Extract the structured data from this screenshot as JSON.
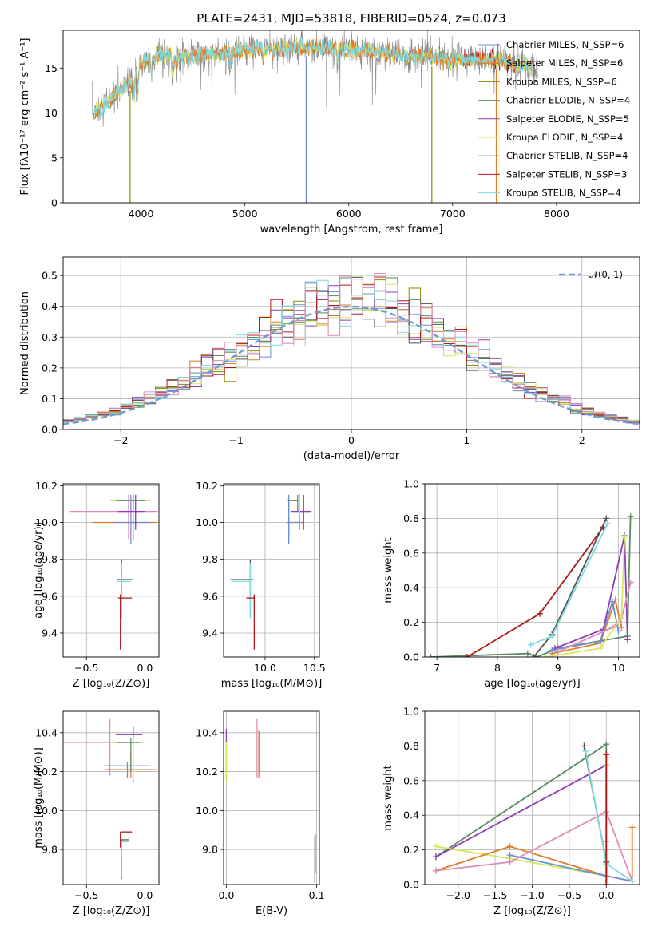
{
  "figure_title": "PLATE=2431, MJD=53818, FIBERID=0524, z=0.073",
  "colors": {
    "chabrier_miles": "#6b8fd6",
    "salpeter_miles": "#e07b2a",
    "kroupa_miles": "#8a8a00",
    "chabrier_elodie": "#5a8a60",
    "salpeter_elodie": "#8e3bb5",
    "kroupa_elodie": "#d4e85a",
    "chabrier_stelib": "#555555",
    "salpeter_stelib": "#b01818",
    "kroupa_stelib": "#7fd9df",
    "data_spectrum": "#888888",
    "normal_curve": "#6f9ad6",
    "pink": "#e08ab8"
  },
  "chart_data": [
    {
      "id": "spectrum",
      "type": "line",
      "title": "PLATE=2431, MJD=53818, FIBERID=0524, z=0.073",
      "xlabel": "wavelength [Angstrom, rest frame]",
      "ylabel": "Flux [fλ10⁻¹⁷ erg cm⁻² s⁻¹ A⁻¹]",
      "xlim": [
        3250,
        8800
      ],
      "ylim": [
        0,
        19.2
      ],
      "xticks": [
        4000,
        5000,
        6000,
        7000,
        8000
      ],
      "yticks": [
        0,
        5,
        10,
        15
      ],
      "grid": false,
      "legend_position": "top-right",
      "legend": [
        "Chabrier MILES, N_SSP=6",
        "Salpeter MILES, N_SSP=6",
        "Kroupa MILES, N_SSP=6",
        "Chabrier ELODIE, N_SSP=4",
        "Salpeter ELODIE, N_SSP=5",
        "Kroupa ELODIE, N_SSP=4",
        "Chabrier STELIB, N_SSP=4",
        "Salpeter STELIB, N_SSP=3",
        "Kroupa STELIB, N_SSP=4"
      ],
      "continuum": {
        "x": [
          3550,
          3700,
          3900,
          4000,
          4200,
          4500,
          4800,
          5000,
          5500,
          6000,
          6500,
          7000,
          7500,
          7800
        ],
        "y": [
          10.0,
          11.5,
          13.5,
          15.5,
          16.4,
          16.3,
          16.7,
          17.0,
          17.4,
          17.0,
          16.5,
          16.0,
          15.8,
          14.8
        ]
      },
      "data_x_range": [
        3530,
        7820
      ],
      "model_x_range": [
        3550,
        7760
      ],
      "red_tail_x_range": [
        7000,
        7600
      ]
    },
    {
      "id": "residual-histogram",
      "type": "bar",
      "xlabel": "(data-model)/error",
      "ylabel": "Normed distribution",
      "xlim": [
        -2.5,
        2.5
      ],
      "ylim": [
        0,
        0.56
      ],
      "xticks": [
        -2,
        -1,
        0,
        1,
        2
      ],
      "yticks": [
        0.0,
        0.1,
        0.2,
        0.3,
        0.4,
        0.5
      ],
      "grid": true,
      "legend_position": "top-right",
      "legend": [
        "𝒩(0, 1)"
      ],
      "bin_width": 0.1,
      "reference": "normal(0,1)"
    },
    {
      "id": "age-vs-metallicity",
      "type": "scatter",
      "xlabel": "Z [log₁₀(Z/Z⊙)]",
      "ylabel": "age  [log₁₀(age/yr)]",
      "xlim": [
        -0.7,
        0.12
      ],
      "ylim": [
        9.27,
        10.21
      ],
      "xticks": [
        -0.5,
        0.0
      ],
      "yticks": [
        9.4,
        9.6,
        9.8,
        10.0,
        10.2
      ],
      "grid": true,
      "points": [
        {
          "x": -0.14,
          "y": 10.06,
          "xerr": [
            0.5,
            0.25
          ],
          "yerr": [
            0.15,
            0.09
          ],
          "color": "pink"
        },
        {
          "x": -0.1,
          "y": 10.0,
          "xerr": [
            0.35,
            0.2
          ],
          "yerr": [
            0.1,
            0.12
          ],
          "color": "salpeter_miles"
        },
        {
          "x": -0.12,
          "y": 10.0,
          "xerr": [
            0.15,
            0.16
          ],
          "yerr": [
            0.12,
            0.15
          ],
          "color": "chabrier_miles"
        },
        {
          "x": -0.08,
          "y": 10.06,
          "xerr": [
            0.15,
            0.08
          ],
          "yerr": [
            0.1,
            0.09
          ],
          "color": "salpeter_elodie"
        },
        {
          "x": -0.1,
          "y": 10.12,
          "xerr": [
            0.2,
            0.15
          ],
          "yerr": [
            0.08,
            0.04
          ],
          "color": "kroupa_elodie"
        },
        {
          "x": -0.1,
          "y": 10.12,
          "xerr": [
            0.15,
            0.1
          ],
          "yerr": [
            0.06,
            0.03
          ],
          "color": "chabrier_elodie"
        },
        {
          "x": -0.2,
          "y": 9.69,
          "xerr": [
            0.04,
            0.1
          ],
          "yerr": [
            0.19,
            0.11
          ],
          "color": "chabrier_stelib"
        },
        {
          "x": -0.2,
          "y": 9.68,
          "xerr": [
            0.04,
            0.08
          ],
          "yerr": [
            0.2,
            0.1
          ],
          "color": "kroupa_stelib"
        },
        {
          "x": -0.21,
          "y": 9.59,
          "xerr": [
            0.02,
            0.1
          ],
          "yerr": [
            0.28,
            0.02
          ],
          "color": "salpeter_stelib"
        }
      ]
    },
    {
      "id": "age-vs-mass",
      "type": "scatter",
      "xlabel": "mass [log₁₀(M/M⊙)]",
      "ylabel": "",
      "xlim": [
        9.58,
        10.55
      ],
      "ylim": [
        9.27,
        10.21
      ],
      "xticks": [
        10.0,
        10.5
      ],
      "yticks": [
        9.4,
        9.6,
        9.8,
        10.0,
        10.2
      ],
      "grid": true,
      "points": [
        {
          "x": 10.35,
          "y": 10.06,
          "xerr": [
            0.02,
            0.12
          ],
          "yerr": [
            0.1,
            0.09
          ],
          "color": "pink"
        },
        {
          "x": 10.24,
          "y": 10.0,
          "xerr": [
            0.02,
            0.15
          ],
          "yerr": [
            0.1,
            0.12
          ],
          "color": "salpeter_miles"
        },
        {
          "x": 10.24,
          "y": 10.0,
          "xerr": [
            0.02,
            0.13
          ],
          "yerr": [
            0.12,
            0.15
          ],
          "color": "chabrier_miles"
        },
        {
          "x": 10.39,
          "y": 10.06,
          "xerr": [
            0.13,
            0.08
          ],
          "yerr": [
            0.1,
            0.09
          ],
          "color": "salpeter_elodie"
        },
        {
          "x": 10.35,
          "y": 10.12,
          "xerr": [
            0.12,
            0.0
          ],
          "yerr": [
            0.08,
            0.04
          ],
          "color": "kroupa_elodie"
        },
        {
          "x": 10.33,
          "y": 10.12,
          "xerr": [
            0.1,
            0.0
          ],
          "yerr": [
            0.06,
            0.03
          ],
          "color": "chabrier_elodie"
        },
        {
          "x": 9.85,
          "y": 9.69,
          "xerr": [
            0.2,
            0.03
          ],
          "yerr": [
            0.19,
            0.11
          ],
          "color": "chabrier_stelib"
        },
        {
          "x": 9.85,
          "y": 9.68,
          "xerr": [
            0.18,
            0.01
          ],
          "yerr": [
            0.2,
            0.1
          ],
          "color": "kroupa_stelib"
        },
        {
          "x": 9.89,
          "y": 9.59,
          "xerr": [
            0.08,
            0.0
          ],
          "yerr": [
            0.28,
            0.02
          ],
          "color": "salpeter_stelib"
        }
      ]
    },
    {
      "id": "mass-weight-vs-age",
      "type": "line",
      "xlabel": "age  [log₁₀(age/yr)]",
      "ylabel": "mass weight",
      "xlim": [
        6.8,
        10.35
      ],
      "ylim": [
        0,
        1.0
      ],
      "xticks": [
        7,
        8,
        9,
        10
      ],
      "yticks": [
        0.0,
        0.2,
        0.4,
        0.6,
        0.8,
        1.0
      ],
      "grid": true,
      "series": [
        {
          "color": "chabrier_elodie",
          "x": [
            6.9,
            8.5,
            8.65,
            9.0,
            10.15,
            10.2
          ],
          "y": [
            0.0,
            0.02,
            0.0,
            0.05,
            0.12,
            0.81
          ]
        },
        {
          "color": "salpeter_stelib",
          "x": [
            7.5,
            8.7,
            9.75
          ],
          "y": [
            0.0,
            0.25,
            0.75
          ]
        },
        {
          "color": "chabrier_stelib",
          "x": [
            8.6,
            8.9,
            9.8
          ],
          "y": [
            0.0,
            0.13,
            0.8
          ]
        },
        {
          "color": "kroupa_stelib",
          "x": [
            8.55,
            8.9,
            9.82
          ],
          "y": [
            0.07,
            0.12,
            0.77
          ]
        },
        {
          "color": "salpeter_elodie",
          "x": [
            8.95,
            9.75,
            10.1,
            10.15
          ],
          "y": [
            0.05,
            0.16,
            0.7,
            0.1
          ]
        },
        {
          "color": "salpeter_miles",
          "x": [
            8.9,
            9.7,
            9.95,
            10.05
          ],
          "y": [
            0.02,
            0.08,
            0.33,
            0.17
          ]
        },
        {
          "color": "chabrier_miles",
          "x": [
            8.9,
            9.7,
            9.9,
            10.0
          ],
          "y": [
            0.04,
            0.09,
            0.32,
            0.15
          ]
        },
        {
          "color": "pink",
          "x": [
            9.0,
            9.9,
            10.05,
            10.2
          ],
          "y": [
            0.03,
            0.17,
            0.22,
            0.43
          ]
        },
        {
          "color": "kroupa_elodie",
          "x": [
            8.8,
            9.7,
            10.05,
            10.1
          ],
          "y": [
            0.0,
            0.05,
            0.23,
            0.69
          ]
        }
      ]
    },
    {
      "id": "mass-vs-metallicity",
      "type": "scatter",
      "xlabel": "Z [log₁₀(Z/Z⊙)]",
      "ylabel": "mass [log₁₀(M/M⊙)]",
      "xlim": [
        -0.7,
        0.12
      ],
      "ylim": [
        9.62,
        10.51
      ],
      "xticks": [
        -0.5,
        0.0
      ],
      "yticks": [
        9.8,
        10.0,
        10.2,
        10.4
      ],
      "grid": true,
      "points": [
        {
          "x": -0.3,
          "y": 10.35,
          "xerr": [
            0.4,
            0.15
          ],
          "yerr": [
            0.17,
            0.12
          ],
          "color": "pink"
        },
        {
          "x": -0.15,
          "y": 10.23,
          "xerr": [
            0.2,
            0.2
          ],
          "yerr": [
            0.06,
            0.02
          ],
          "color": "chabrier_miles"
        },
        {
          "x": -0.12,
          "y": 10.21,
          "xerr": [
            0.22,
            0.22
          ],
          "yerr": [
            0.04,
            0.1
          ],
          "color": "salpeter_miles"
        },
        {
          "x": -0.1,
          "y": 10.39,
          "xerr": [
            0.15,
            0.08
          ],
          "yerr": [
            0.24,
            0.04
          ],
          "color": "salpeter_elodie"
        },
        {
          "x": -0.1,
          "y": 10.35,
          "xerr": [
            0.2,
            0.1
          ],
          "yerr": [
            0.19,
            0.02
          ],
          "color": "kroupa_elodie"
        },
        {
          "x": -0.12,
          "y": 10.35,
          "xerr": [
            0.12,
            0.08
          ],
          "yerr": [
            0.15,
            0.02
          ],
          "color": "chabrier_elodie"
        },
        {
          "x": -0.2,
          "y": 9.85,
          "xerr": [
            0.0,
            0.06
          ],
          "yerr": [
            0.2,
            0.0
          ],
          "color": "chabrier_stelib"
        },
        {
          "x": -0.2,
          "y": 9.84,
          "xerr": [
            0.0,
            0.06
          ],
          "yerr": [
            0.18,
            0.0
          ],
          "color": "kroupa_stelib"
        },
        {
          "x": -0.21,
          "y": 9.89,
          "xerr": [
            0.0,
            0.1
          ],
          "yerr": [
            0.08,
            0.0
          ],
          "color": "salpeter_stelib"
        }
      ]
    },
    {
      "id": "mass-vs-ebv",
      "type": "scatter",
      "xlabel": "E(B-V)",
      "ylabel": "",
      "xlim": [
        -0.003,
        0.103
      ],
      "ylim": [
        9.62,
        10.51
      ],
      "xticks": [
        0.0,
        0.1
      ],
      "yticks": [
        9.8,
        10.0,
        10.2,
        10.4
      ],
      "grid": true,
      "points": [
        {
          "x": 0.0,
          "y": 10.3,
          "yerr": [
            0.14,
            0.12
          ],
          "color": "salpeter_elodie"
        },
        {
          "x": 0.0,
          "y": 10.25,
          "yerr": [
            0.1,
            0.1
          ],
          "color": "kroupa_elodie"
        },
        {
          "x": 0.034,
          "y": 10.29,
          "yerr": [
            0.12,
            0.18
          ],
          "color": "pink"
        },
        {
          "x": 0.036,
          "y": 10.29,
          "yerr": [
            0.12,
            0.12
          ],
          "color": "salpeter_miles"
        },
        {
          "x": 0.037,
          "y": 10.3,
          "yerr": [
            0.1,
            0.1
          ],
          "color": "chabrier_miles"
        },
        {
          "x": 0.098,
          "y": 9.75,
          "yerr": [
            0.12,
            0.12
          ],
          "color": "chabrier_stelib"
        },
        {
          "x": 0.099,
          "y": 9.78,
          "yerr": [
            0.1,
            0.1
          ],
          "color": "kroupa_stelib"
        }
      ]
    },
    {
      "id": "mass-weight-vs-metallicity",
      "type": "line",
      "xlabel": "Z [log₁₀(Z/Z⊙)]",
      "ylabel": "mass weight",
      "xlim": [
        -2.45,
        0.45
      ],
      "ylim": [
        0,
        1.0
      ],
      "xticks": [
        -2.0,
        -1.5,
        -1.0,
        -0.5,
        0.0
      ],
      "yticks": [
        0.0,
        0.2,
        0.4,
        0.6,
        0.8,
        1.0
      ],
      "grid": true,
      "series": [
        {
          "color": "chabrier_elodie",
          "x": [
            -2.3,
            0.0,
            0.0
          ],
          "y": [
            0.16,
            0.81,
            0.05
          ]
        },
        {
          "color": "salpeter_elodie",
          "x": [
            -2.3,
            0.0
          ],
          "y": [
            0.16,
            0.69
          ]
        },
        {
          "color": "kroupa_elodie",
          "x": [
            -2.3,
            -1.3,
            0.0,
            0.0
          ],
          "y": [
            0.22,
            0.15,
            0.05,
            0.69
          ]
        },
        {
          "color": "salpeter_miles",
          "x": [
            -2.3,
            -1.3,
            0.0,
            0.35,
            0.35
          ],
          "y": [
            0.08,
            0.22,
            0.05,
            0.02,
            0.33
          ]
        },
        {
          "color": "pink",
          "x": [
            -2.3,
            -1.3,
            0.0,
            0.35
          ],
          "y": [
            0.08,
            0.13,
            0.42,
            0.02
          ]
        },
        {
          "color": "chabrier_miles",
          "x": [
            -1.3,
            0.0,
            0.35
          ],
          "y": [
            0.17,
            0.05,
            0.02
          ]
        },
        {
          "color": "chabrier_stelib",
          "x": [
            -0.3,
            0.0,
            0.0
          ],
          "y": [
            0.8,
            0.13,
            0.0
          ]
        },
        {
          "color": "kroupa_stelib",
          "x": [
            -0.28,
            0.0,
            0.35
          ],
          "y": [
            0.77,
            0.12,
            0.02
          ]
        },
        {
          "color": "salpeter_stelib",
          "x": [
            0.0,
            0.0,
            0.0
          ],
          "y": [
            0.75,
            0.25,
            0.0
          ]
        }
      ]
    }
  ]
}
